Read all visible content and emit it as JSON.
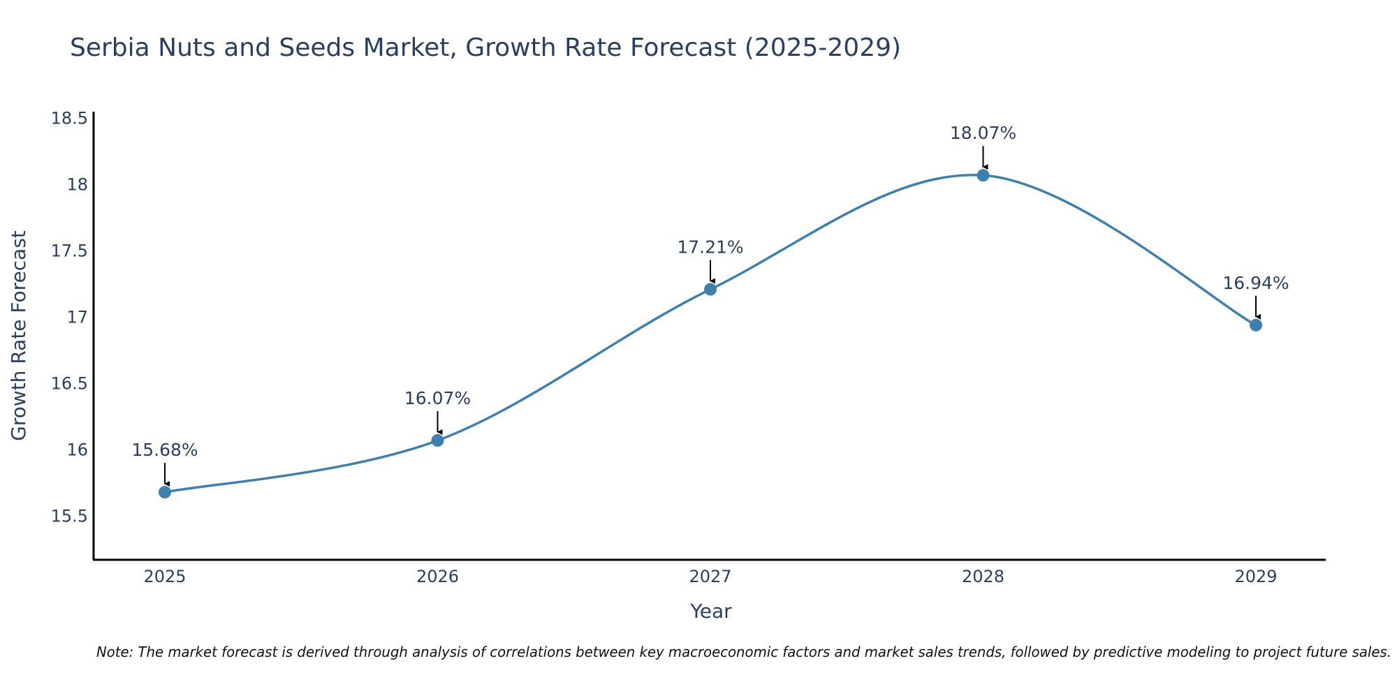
{
  "chart_data": {
    "type": "line",
    "title": "Serbia Nuts and Seeds Market, Growth Rate Forecast (2025-2029)",
    "xlabel": "Year",
    "ylabel": "Growth Rate Forecast",
    "categories": [
      "2025",
      "2026",
      "2027",
      "2028",
      "2029"
    ],
    "values": [
      15.68,
      16.07,
      17.21,
      18.07,
      16.94
    ],
    "data_labels": [
      "15.68%",
      "16.07%",
      "17.21%",
      "18.07%",
      "16.94%"
    ],
    "yticks": [
      15.5,
      16,
      16.5,
      17,
      17.5,
      18,
      18.5
    ],
    "ytick_labels": [
      "15.5",
      "16",
      "16.5",
      "17",
      "17.5",
      "18",
      "18.5"
    ],
    "ylim": [
      15.17,
      18.55
    ],
    "grid": false,
    "line_color": "#3f7fae",
    "marker_color": "#3f7fae",
    "annotation_color": "#000000",
    "note": "Note: The market forecast is derived through analysis of correlations between key macroeconomic factors and market sales trends, followed by predictive modeling to project future sales."
  }
}
